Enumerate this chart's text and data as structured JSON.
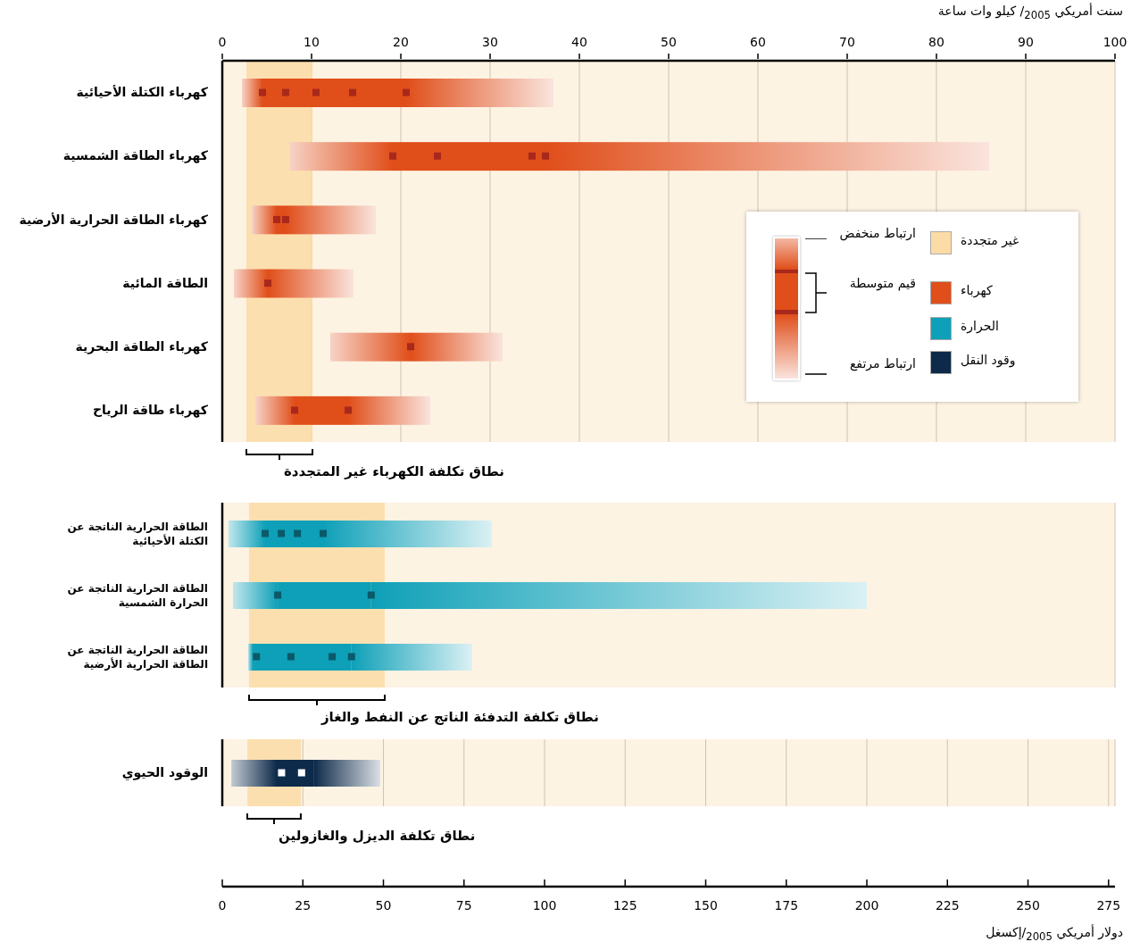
{
  "chart_data": [
    {
      "type": "bar",
      "orientation": "horizontal",
      "xlabel": "سنت أمريكي $_{2005}$/ كيلو وات ساعة",
      "categories": [
        "كهرباء الكتلة الأحيائية",
        "كهرباء الطاقة الشمسية",
        "كهرباء الطاقة الحرارية الأرضية",
        "الطاقة المائية",
        "كهرباء الطاقة البحرية",
        "كهرباء طاقة الرياح"
      ],
      "xlim": [
        0,
        100
      ],
      "xticks": [
        0,
        10,
        20,
        30,
        40,
        50,
        60,
        70,
        80,
        90,
        100
      ],
      "grid": "x",
      "legend": "right",
      "bands": [
        {
          "axis": "x",
          "from": 2.7,
          "to": 10.1,
          "label": "نطاق تكلفة الكهرباء غير المتجددة",
          "color": "#fbdba6"
        }
      ],
      "annotations": [
        "غير متجددة",
        "ارتباط منخفض",
        "قيم متوسطة",
        "ارتباط مرتفع"
      ],
      "series": [
        {
          "type": "bar",
          "color": "#e04e1a",
          "base": [
            2.2,
            7.5,
            3.3,
            1.3,
            12.1,
            3.7
          ],
          "values": [
            2.3,
            11.6,
            2.8,
            3.8,
            9.0,
            4.4
          ]
        },
        {
          "type": "bar",
          "name": "كهرباء",
          "color": "#e04e1a",
          "base": [
            4.5,
            19.1,
            6.1,
            null,
            null,
            8.1
          ],
          "values": [
            16.1,
            17.1,
            1.0,
            null,
            null,
            6.0
          ]
        },
        {
          "type": "bar",
          "color": "#e04e1a",
          "base": [
            20.6,
            36.2,
            7.1,
            5.1,
            21.1,
            14.1
          ],
          "values": [
            16.5,
            49.7,
            10.1,
            9.6,
            10.3,
            9.2
          ]
        },
        {
          "type": "scatter",
          "marker": "square",
          "color": "#a8281c",
          "x": [
            "كهرباء الكتلة الأحيائية",
            "كهرباء الكتلة الأحيائية",
            "كهرباء الكتلة الأحيائية",
            "كهرباء الكتلة الأحيائية",
            "كهرباء الكتلة الأحيائية",
            "كهرباء الطاقة الشمسية",
            "كهرباء الطاقة الشمسية",
            "كهرباء الطاقة الشمسية",
            "كهرباء الطاقة الشمسية",
            "كهرباء الطاقة الحرارية الأرضية",
            "كهرباء الطاقة الحرارية الأرضية",
            "الطاقة المائية",
            "كهرباء الطاقة البحرية",
            "كهرباء طاقة الرياح",
            "كهرباء طاقة الرياح"
          ],
          "values": [
            4.5,
            7.1,
            10.5,
            14.6,
            20.6,
            19.1,
            24.1,
            34.7,
            36.2,
            6.1,
            7.1,
            5.1,
            21.1,
            8.1,
            14.1
          ]
        }
      ]
    },
    {
      "type": "bar",
      "orientation": "horizontal",
      "categories": [
        "الطاقة الحرارية الناتجة عن الكتلة الأحيائية",
        "الطاقة الحرارية الناتجة عن الحرارة الشمسية",
        "الطاقة الحرارية الناتجة عن الطاقة الحرارية الأرضية"
      ],
      "xlim": [
        0,
        277
      ],
      "xticks": [
        0,
        25,
        50,
        75,
        100,
        125,
        150,
        175,
        200,
        225,
        250,
        275
      ],
      "tick_labels": "y",
      "grid": "x",
      "bands": [
        {
          "axis": "x",
          "from": 8.3,
          "to": 50.4,
          "label": "نطاق تكلفة التدفئة الناتج عن النفط والغاز",
          "color": "#fbdba6"
        }
      ],
      "series": [
        {
          "type": "bar",
          "color": "#0ea0b8",
          "base": [
            1.9,
            3.3,
            8.0
          ],
          "values": [
            11.4,
            13.9,
            1.4
          ]
        },
        {
          "type": "bar",
          "name": "الحرارة",
          "color": "#0ea0b8",
          "base": [
            13.3,
            17.2,
            9.4
          ],
          "values": [
            18.0,
            29.0,
            30.7
          ]
        },
        {
          "type": "bar",
          "color": "#0ea0b8",
          "base": [
            31.3,
            46.2,
            40.1
          ],
          "values": [
            52.3,
            153.8,
            37.4
          ]
        },
        {
          "type": "scatter",
          "marker": "square",
          "color": "#0a5a6a",
          "x": [
            "الطاقة الحرارية الناتجة عن الكتلة الأحيائية",
            "الطاقة الحرارية الناتجة عن الكتلة الأحيائية",
            "الطاقة الحرارية الناتجة عن الكتلة الأحيائية",
            "الطاقة الحرارية الناتجة عن الكتلة الأحيائية",
            "الطاقة الحرارية الناتجة عن الحرارة الشمسية",
            "الطاقة الحرارية الناتجة عن الحرارة الشمسية",
            "الطاقة الحرارية الناتجة عن الطاقة الحرارية الأرضية",
            "الطاقة الحرارية الناتجة عن الطاقة الحرارية الأرضية",
            "الطاقة الحرارية الناتجة عن الطاقة الحرارية الأرضية",
            "الطاقة الحرارية الناتجة عن الطاقة الحرارية الأرضية"
          ],
          "values": [
            13.3,
            18.3,
            23.3,
            31.3,
            17.2,
            46.2,
            10.6,
            21.3,
            34.1,
            40.1
          ]
        }
      ]
    },
    {
      "type": "bar",
      "orientation": "horizontal",
      "xlabel": "دولار أمريكي $_{2005}$/إكسغل",
      "categories": [
        "الوقود الحيوي"
      ],
      "xlim": [
        0,
        277
      ],
      "xticks": [
        0,
        25,
        50,
        75,
        100,
        125,
        150,
        175,
        200,
        225,
        250,
        275
      ],
      "grid": "x",
      "bands": [
        {
          "axis": "x",
          "from": 7.8,
          "to": 24.4,
          "label": "نطاق تكلفة الديزل والغازولين",
          "color": "#fbdba6"
        }
      ],
      "series": [
        {
          "type": "bar",
          "color": "#0d2a4a",
          "base": [
            2.8
          ],
          "values": [
            14.1
          ]
        },
        {
          "type": "bar",
          "name": "وقود النقل",
          "color": "#0d2a4a",
          "base": [
            16.9
          ],
          "values": [
            11.6
          ]
        },
        {
          "type": "bar",
          "color": "#0d2a4a",
          "base": [
            28.5
          ],
          "values": [
            20.5
          ]
        },
        {
          "type": "scatter",
          "marker": "square",
          "color": "#ffffff",
          "x": [
            "الوقود الحيوي",
            "الوقود الحيوي"
          ],
          "values": [
            18.4,
            24.6
          ]
        }
      ]
    }
  ]
}
